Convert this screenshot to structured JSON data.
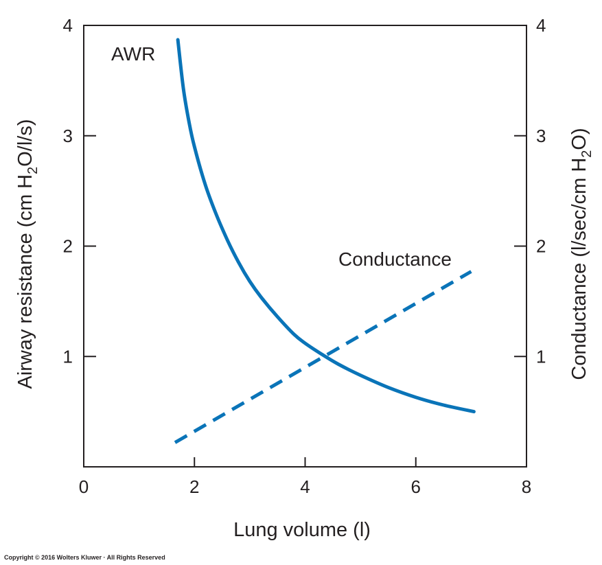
{
  "chart_data": {
    "type": "line",
    "x_axis": {
      "label": "Lung volume (l)",
      "range": [
        0,
        8
      ],
      "ticks": [
        0,
        2,
        4,
        6,
        8
      ]
    },
    "y_axis_left": {
      "label_parts": [
        "Airway resistance (cm H",
        "2",
        "O/l/s)"
      ],
      "range": [
        0,
        4
      ],
      "ticks": [
        1,
        2,
        3,
        4
      ]
    },
    "y_axis_right": {
      "label_parts": [
        "Conductance (l/sec/cm H",
        "2",
        "O)"
      ],
      "range": [
        0,
        4
      ],
      "ticks": [
        1,
        2,
        3,
        4
      ]
    },
    "series": [
      {
        "name": "AWR",
        "axis": "left",
        "style": "solid",
        "color": "#0a74b8",
        "x": [
          1.7,
          1.8,
          1.9,
          2.0,
          2.2,
          2.4,
          2.6,
          2.8,
          3.0,
          3.2,
          3.5,
          3.8,
          4.0,
          4.3,
          4.6,
          5.0,
          5.5,
          6.0,
          6.5,
          7.05
        ],
        "y": [
          3.87,
          3.43,
          3.13,
          2.9,
          2.55,
          2.28,
          2.05,
          1.85,
          1.68,
          1.54,
          1.36,
          1.2,
          1.12,
          1.02,
          0.93,
          0.83,
          0.72,
          0.63,
          0.56,
          0.5
        ]
      },
      {
        "name": "Conductance",
        "axis": "right",
        "style": "dashed",
        "color": "#0a74b8",
        "x": [
          1.65,
          7.0
        ],
        "y": [
          0.22,
          1.77
        ]
      }
    ],
    "annotations": [
      {
        "text": "AWR",
        "series": "AWR"
      },
      {
        "text": "Conductance",
        "series": "Conductance"
      }
    ]
  },
  "footer": {
    "copyright": "Copyright © 2016 Wolters Kluwer · All Rights Reserved"
  }
}
